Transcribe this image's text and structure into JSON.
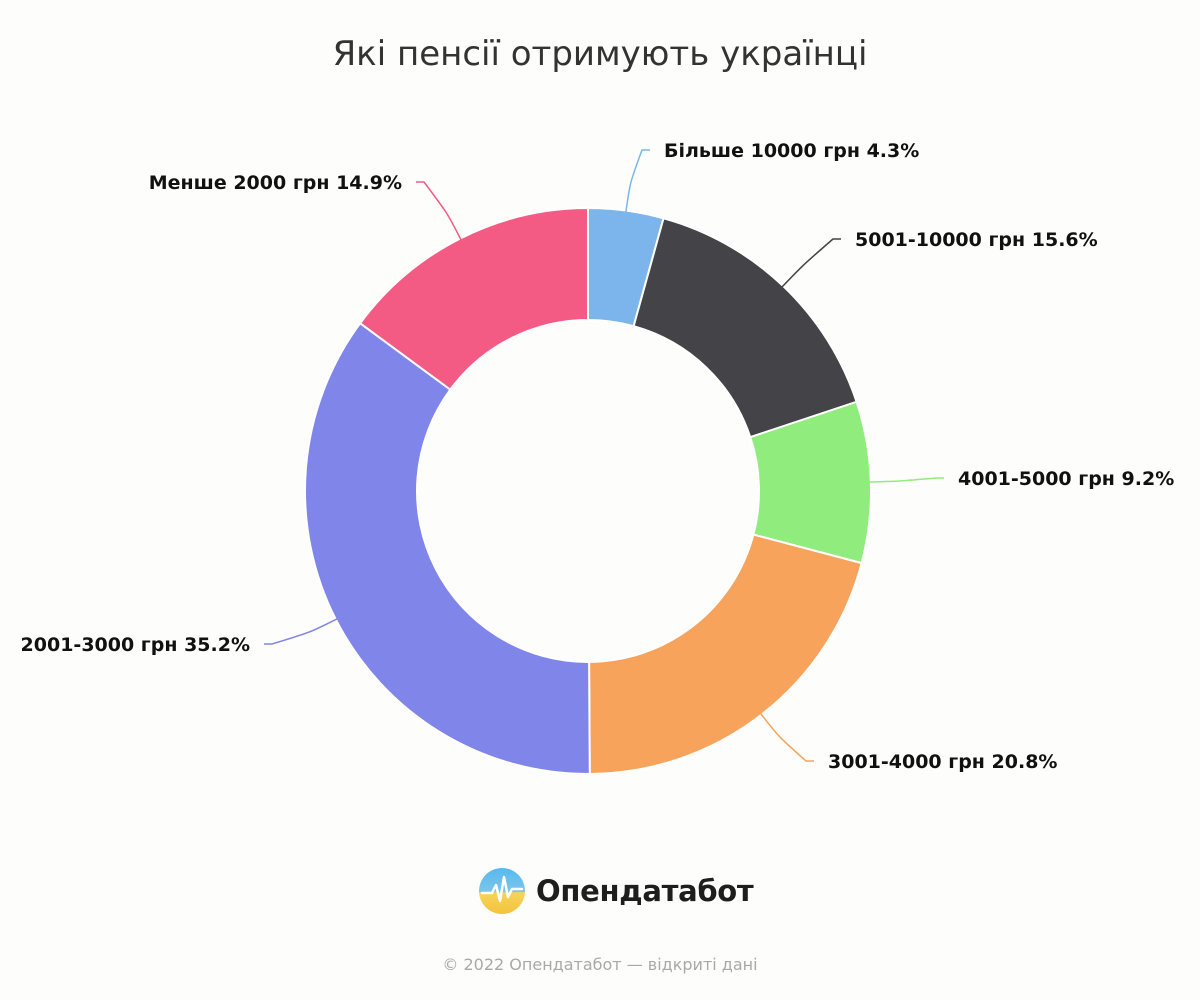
{
  "chart_data": {
    "type": "pie",
    "variant": "donut",
    "title": "Які пенсії отримують українці",
    "slices": [
      {
        "label": "Більше 10000 грн 4.3%",
        "category": "Більше 10000 грн",
        "value": 4.3,
        "color": "#7cb5ec"
      },
      {
        "label": "5001-10000 грн 15.6%",
        "category": "5001-10000 грн",
        "value": 15.6,
        "color": "#434348"
      },
      {
        "label": "4001-5000 грн 9.2%",
        "category": "4001-5000 грн",
        "value": 9.2,
        "color": "#90ed7d"
      },
      {
        "label": "3001-4000 грн 20.8%",
        "category": "3001-4000 грн",
        "value": 20.8,
        "color": "#f7a35c"
      },
      {
        "label": "2001-3000 грн 35.2%",
        "category": "2001-3000 грн",
        "value": 35.2,
        "color": "#8085e9"
      },
      {
        "label": "Менше 2000 грн 14.9%",
        "category": "Менше 2000 грн",
        "value": 14.9,
        "color": "#f45b84"
      }
    ],
    "start_angle": "top, clockwise",
    "legend": "none"
  },
  "brand": {
    "name": "Опендатабот",
    "icon": "opendatabot-logo-icon"
  },
  "footer": {
    "text": "© 2022 Опендатабот — відкриті дані"
  }
}
